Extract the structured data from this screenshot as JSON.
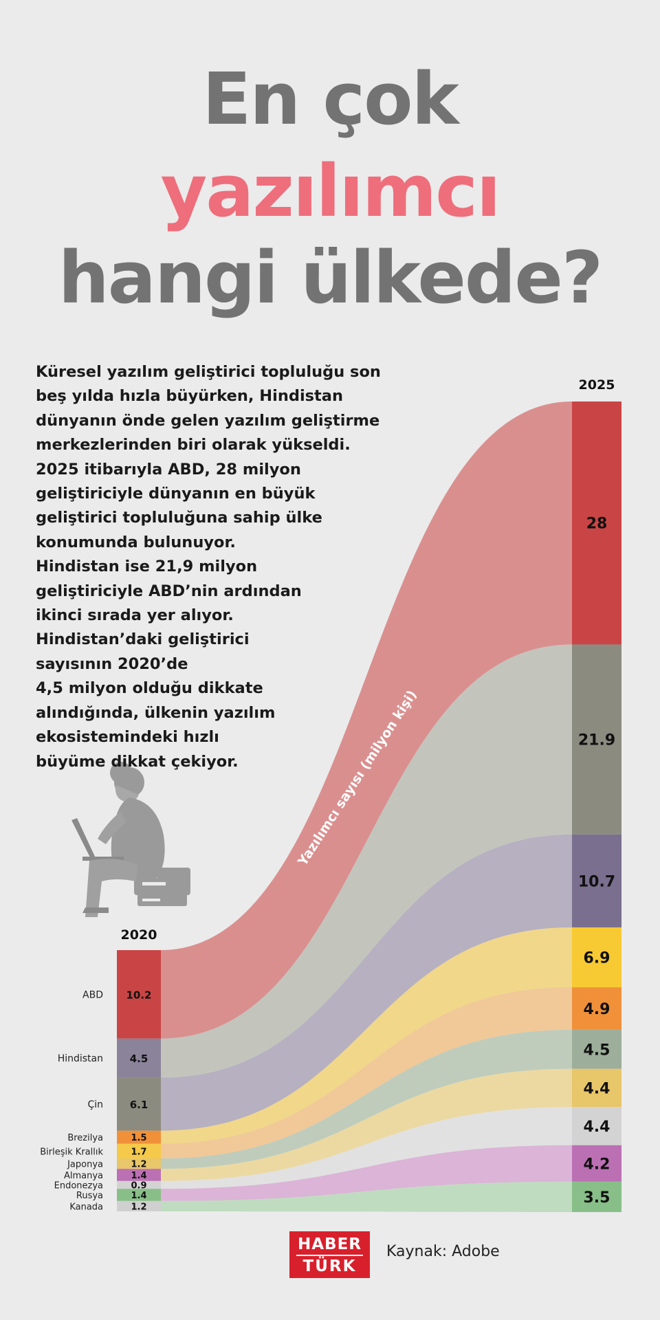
{
  "title": {
    "line1": "En çok",
    "line2": "yazılımcı",
    "line3": "hangi ülkede?"
  },
  "description": [
    "Küresel yazılım geliştirici topluluğu son",
    "beş yılda hızla büyürken, Hindistan",
    "dünyanın önde gelen yazılım geliştirme",
    "merkezlerinden biri olarak yükseldi.",
    "2025 itibarıyla ABD, 28 milyon",
    "geliştiriciyle dünyanın en büyük",
    "geliştirici topluluğuna sahip ülke",
    "konumunda bulunuyor.",
    "Hindistan ise 21,9 milyon",
    "geliştiriciyle ABD’nin ardından",
    "ikinci sırada yer alıyor.",
    "Hindistan’daki geliştirici",
    "sayısının 2020’de",
    "4,5 milyon olduğu dikkate",
    "alındığında, ülkenin yazılım",
    "ekosistemindeki hızlı",
    "büyüme dikkat çekiyor."
  ],
  "chart_data": {
    "type": "sankey-bump",
    "year_left": "2020",
    "year_right": "2025",
    "flow_label": "Yazılımcı sayısı (milyon kişi)",
    "left": [
      {
        "name": "ABD",
        "value": 10.2,
        "color": "#c94545"
      },
      {
        "name": "Hindistan",
        "value": 4.5,
        "color": "#8a8399"
      },
      {
        "name": "Çin",
        "value": 6.1,
        "color": "#8b8b80"
      },
      {
        "name": "Brezilya",
        "value": 1.5,
        "color": "#f0913a"
      },
      {
        "name": "Birleşik Krallık",
        "value": 1.7,
        "color": "#f5c94a"
      },
      {
        "name": "Japonya",
        "value": 1.2,
        "color": "#e8c66a"
      },
      {
        "name": "Almanya",
        "value": 1.4,
        "color": "#bb70b4"
      },
      {
        "name": "Endonezya",
        "value": 0.9,
        "color": "#d3d3d3"
      },
      {
        "name": "Rusya",
        "value": 1.4,
        "color": "#88bf88"
      },
      {
        "name": "Kanada",
        "value": 1.2,
        "color": "#d0d0d0"
      }
    ],
    "right": [
      {
        "name": "ABD",
        "value": 28,
        "label": "28",
        "color": "#c94545"
      },
      {
        "name": "Hindistan",
        "value": 21.9,
        "label": "21.9",
        "color": "#8b8b80"
      },
      {
        "name": "Çin",
        "value": 10.7,
        "label": "10.7",
        "color": "#7a6f8e"
      },
      {
        "name": "Brezilya",
        "value": 6.9,
        "label": "6.9",
        "color": "#f7c933"
      },
      {
        "name": "Birleşik Krallık",
        "value": 4.9,
        "label": "4.9",
        "color": "#f0913a"
      },
      {
        "name": "Japonya",
        "value": 4.5,
        "label": "4.5",
        "color": "#9dae9a"
      },
      {
        "name": "Almanya",
        "value": 4.4,
        "label": "4.4",
        "color": "#e8c66a"
      },
      {
        "name": "Endonezya",
        "value": 4.4,
        "label": "4.4",
        "color": "#d3d3d3"
      },
      {
        "name": "Rusya",
        "value": 4.2,
        "label": "4.2",
        "color": "#bb70b4"
      },
      {
        "name": "Kanada",
        "value": 3.5,
        "label": "3.5",
        "color": "#88bf88"
      }
    ]
  },
  "footer": {
    "logo_line1": "HABER",
    "logo_line2": "TÜRK",
    "source": "Kaynak: Adobe"
  },
  "illustration": "person-with-laptop-icon"
}
